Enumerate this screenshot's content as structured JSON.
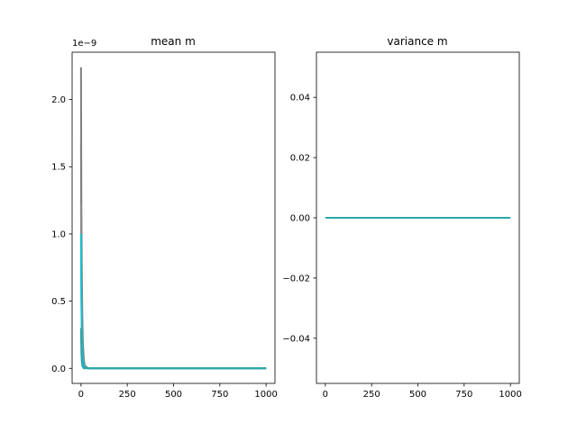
{
  "chart_data": [
    {
      "type": "line",
      "title": "mean m",
      "xlabel": "",
      "ylabel": "",
      "offset_text": "1e−9",
      "xlim": [
        -48,
        1048
      ],
      "ylim": [
        -0.112,
        2.352
      ],
      "xticks": [
        0,
        250,
        500,
        750,
        1000
      ],
      "yticks": [
        0.0,
        0.5,
        1.0,
        1.5,
        2.0
      ],
      "ytick_labels": [
        "0.0",
        "0.5",
        "1.0",
        "1.5",
        "2.0"
      ],
      "series": [
        {
          "color": "#7f7f7f",
          "x": [
            0,
            1,
            2,
            4,
            7,
            10,
            15,
            20,
            40,
            100,
            1000
          ],
          "y": [
            2.24,
            1.68,
            1.22,
            0.78,
            0.4,
            0.2,
            0.07,
            0.02,
            0.0,
            0.0,
            0.0
          ]
        },
        {
          "color": "#808080",
          "x": [
            0,
            1,
            2,
            4,
            7,
            10,
            15,
            20,
            40,
            100,
            1000
          ],
          "y": [
            1.68,
            1.22,
            0.85,
            0.5,
            0.25,
            0.12,
            0.04,
            0.01,
            0.0,
            0.0,
            0.0
          ]
        },
        {
          "color": "#8c8c8c",
          "x": [
            0,
            1,
            2,
            4,
            7,
            10,
            15,
            20,
            40,
            100,
            1000
          ],
          "y": [
            1.22,
            0.9,
            0.62,
            0.36,
            0.17,
            0.08,
            0.03,
            0.01,
            0.0,
            0.0,
            0.0
          ]
        },
        {
          "color": "#17becf",
          "x": [
            0,
            1,
            2,
            4,
            7,
            10,
            15,
            20,
            40,
            100,
            1000
          ],
          "y": [
            1.0,
            0.72,
            0.5,
            0.28,
            0.13,
            0.06,
            0.02,
            0.005,
            0.0,
            0.0,
            0.0
          ]
        },
        {
          "color": "#2ca7a8",
          "x": [
            0,
            1,
            2,
            4,
            7,
            10,
            15,
            20,
            40,
            100,
            1000
          ],
          "y": [
            0.3,
            0.2,
            0.12,
            0.06,
            0.02,
            0.01,
            0.0,
            0.0,
            0.0,
            0.0,
            0.0
          ]
        }
      ]
    },
    {
      "type": "line",
      "title": "variance m",
      "xlabel": "",
      "ylabel": "",
      "xlim": [
        -48,
        1048
      ],
      "ylim": [
        -0.055,
        0.055
      ],
      "xticks": [
        0,
        250,
        500,
        750,
        1000
      ],
      "yticks": [
        -0.04,
        -0.02,
        0.0,
        0.02,
        0.04
      ],
      "ytick_labels": [
        "−0.04",
        "−0.02",
        "0.00",
        "0.02",
        "0.04"
      ],
      "series": [
        {
          "color": "#2ca7a8",
          "x": [
            0,
            1000
          ],
          "y": [
            0.0,
            0.0
          ]
        }
      ]
    }
  ]
}
